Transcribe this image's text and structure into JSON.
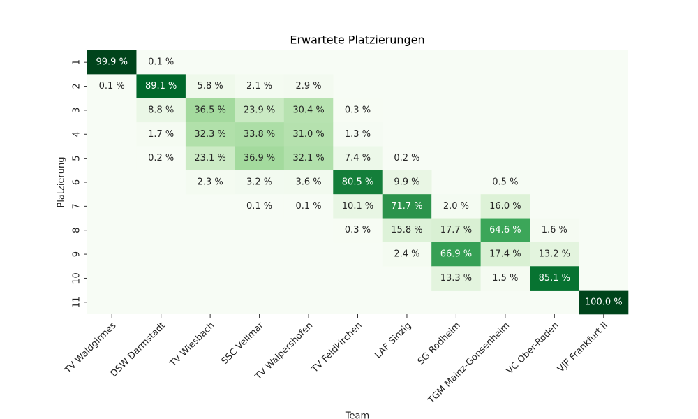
{
  "chart_data": {
    "type": "heatmap",
    "title": "Erwartete Platzierungen",
    "xlabel": "Team",
    "ylabel": "Platzierung",
    "x_categories": [
      "TV Waldgirmes",
      "DSW Darmstadt",
      "TV Wiesbach",
      "SSC Vellmar",
      "TV Walpershofen",
      "TV Feldkirchen",
      "LAF Sinzig",
      "SG Rodheim",
      "TGM Mainz-Gonsenheim",
      "VC Ober-Roden",
      "VJF Frankfurt II"
    ],
    "y_categories": [
      "1",
      "2",
      "3",
      "4",
      "5",
      "6",
      "7",
      "8",
      "9",
      "10",
      "11"
    ],
    "values": [
      [
        99.9,
        0.1,
        null,
        null,
        null,
        null,
        null,
        null,
        null,
        null,
        null
      ],
      [
        0.1,
        89.1,
        5.8,
        2.1,
        2.9,
        null,
        null,
        null,
        null,
        null,
        null
      ],
      [
        null,
        8.8,
        36.5,
        23.9,
        30.4,
        0.3,
        null,
        null,
        null,
        null,
        null
      ],
      [
        null,
        1.7,
        32.3,
        33.8,
        31.0,
        1.3,
        null,
        null,
        null,
        null,
        null
      ],
      [
        null,
        0.2,
        23.1,
        36.9,
        32.1,
        7.4,
        0.2,
        null,
        null,
        null,
        null
      ],
      [
        null,
        null,
        2.3,
        3.2,
        3.6,
        80.5,
        9.9,
        null,
        0.5,
        null,
        null
      ],
      [
        null,
        null,
        null,
        0.1,
        0.1,
        10.1,
        71.7,
        2.0,
        16.0,
        null,
        null
      ],
      [
        null,
        null,
        null,
        null,
        null,
        0.3,
        15.8,
        17.7,
        64.6,
        1.6,
        null
      ],
      [
        null,
        null,
        null,
        null,
        null,
        null,
        2.4,
        66.9,
        17.4,
        13.2,
        null
      ],
      [
        null,
        null,
        null,
        null,
        null,
        null,
        null,
        13.3,
        1.5,
        85.1,
        null
      ],
      [
        null,
        null,
        null,
        null,
        null,
        null,
        null,
        null,
        null,
        null,
        100.0
      ]
    ],
    "value_labels": [
      [
        "99.9 %",
        "0.1 %",
        null,
        null,
        null,
        null,
        null,
        null,
        null,
        null,
        null
      ],
      [
        "0.1 %",
        "89.1 %",
        "5.8 %",
        "2.1 %",
        "2.9 %",
        null,
        null,
        null,
        null,
        null,
        null
      ],
      [
        null,
        "8.8 %",
        "36.5 %",
        "23.9 %",
        "30.4 %",
        "0.3 %",
        null,
        null,
        null,
        null,
        null
      ],
      [
        null,
        "1.7 %",
        "32.3 %",
        "33.8 %",
        "31.0 %",
        "1.3 %",
        null,
        null,
        null,
        null,
        null
      ],
      [
        null,
        "0.2 %",
        "23.1 %",
        "36.9 %",
        "32.1 %",
        "7.4 %",
        "0.2 %",
        null,
        null,
        null,
        null
      ],
      [
        null,
        null,
        "2.3 %",
        "3.2 %",
        "3.6 %",
        "80.5 %",
        "9.9 %",
        null,
        "0.5 %",
        null,
        null
      ],
      [
        null,
        null,
        null,
        "0.1 %",
        "0.1 %",
        "10.1 %",
        "71.7 %",
        "2.0 %",
        "16.0 %",
        null,
        null
      ],
      [
        null,
        null,
        null,
        null,
        null,
        "0.3 %",
        "15.8 %",
        "17.7 %",
        "64.6 %",
        "1.6 %",
        null
      ],
      [
        null,
        null,
        null,
        null,
        null,
        null,
        "2.4 %",
        "66.9 %",
        "17.4 %",
        "13.2 %",
        null
      ],
      [
        null,
        null,
        null,
        null,
        null,
        null,
        null,
        "13.3 %",
        "1.5 %",
        "85.1 %",
        null
      ],
      [
        null,
        null,
        null,
        null,
        null,
        null,
        null,
        null,
        null,
        null,
        "100.0 %"
      ]
    ],
    "vlim": [
      0,
      100
    ],
    "colors": [
      "#f7fcf5",
      "#e5f5e0",
      "#c7e9c0",
      "#a1d99b",
      "#74c476",
      "#41ab5d",
      "#238b45",
      "#006d2c",
      "#00441b"
    ]
  }
}
